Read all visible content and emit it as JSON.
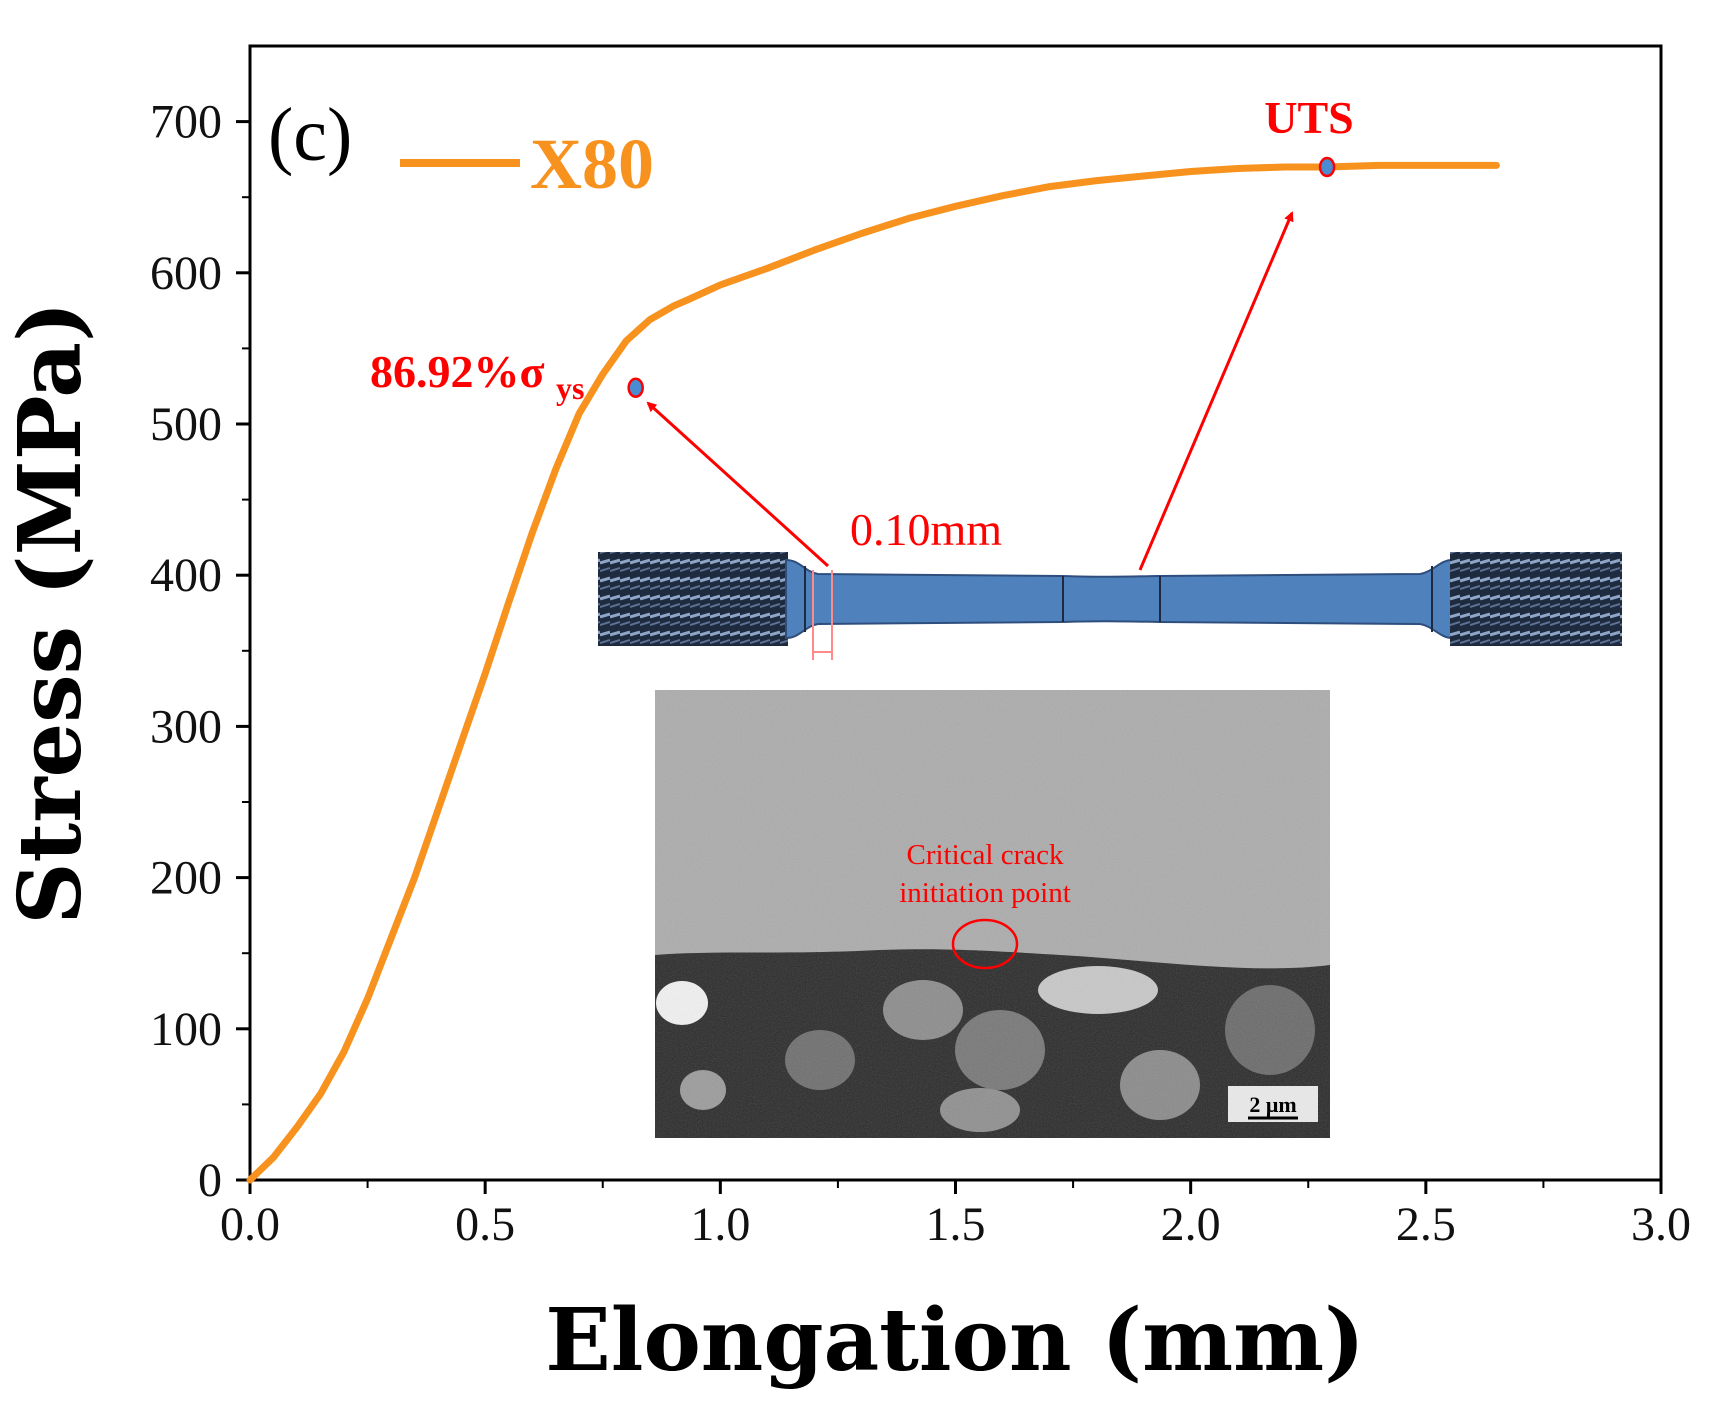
{
  "panel_label": "(c)",
  "colors": {
    "curve": "#F7921E",
    "annotation": "#FF0000",
    "specimen": "#4F81BD",
    "specimen_dark": "#1E2A3E",
    "marker_fill": "#4A8CD2"
  },
  "annotations": {
    "uts_label": "UTS",
    "yield_label_main": "86.92%σ",
    "yield_label_sub": "ys",
    "dimension_label": "0.10mm",
    "crack_label_line1": "Critical crack",
    "crack_label_line2": "initiation point",
    "scale_bar_label": "2 μm"
  },
  "chart_data": {
    "type": "line",
    "title": "",
    "xlabel": "Elongation (mm)",
    "ylabel": "Stress (MPa)",
    "xlim": [
      0,
      3.0
    ],
    "ylim": [
      0,
      750
    ],
    "xticks": [
      0.0,
      0.5,
      1.0,
      1.5,
      2.0,
      2.5,
      3.0
    ],
    "xtick_labels": [
      "0.0",
      "0.5",
      "1.0",
      "1.5",
      "2.0",
      "2.5",
      "3.0"
    ],
    "yticks": [
      0,
      100,
      200,
      300,
      400,
      500,
      600,
      700
    ],
    "ytick_labels": [
      "0",
      "100",
      "200",
      "300",
      "400",
      "500",
      "600",
      "700"
    ],
    "legend": {
      "position": "top-left",
      "entries": [
        "X80"
      ]
    },
    "series": [
      {
        "name": "X80",
        "x": [
          0,
          0.05,
          0.1,
          0.15,
          0.2,
          0.25,
          0.3,
          0.35,
          0.4,
          0.45,
          0.5,
          0.55,
          0.6,
          0.65,
          0.7,
          0.75,
          0.8,
          0.85,
          0.9,
          0.93,
          1.0,
          1.1,
          1.2,
          1.3,
          1.4,
          1.5,
          1.6,
          1.7,
          1.8,
          1.9,
          2.0,
          2.1,
          2.2,
          2.29,
          2.4,
          2.5,
          2.6,
          2.65
        ],
        "values": [
          0,
          15,
          35,
          57,
          85,
          120,
          160,
          200,
          245,
          290,
          335,
          382,
          428,
          470,
          507,
          533,
          555,
          569,
          578,
          582,
          592,
          603,
          615,
          626,
          636,
          644,
          651,
          657,
          661,
          664,
          667,
          669,
          670,
          670,
          671,
          671,
          671,
          671
        ]
      }
    ],
    "points": [
      {
        "label": "86.92%σys",
        "x": 0.82,
        "y": 524
      },
      {
        "label": "UTS",
        "x": 2.29,
        "y": 670
      }
    ]
  }
}
